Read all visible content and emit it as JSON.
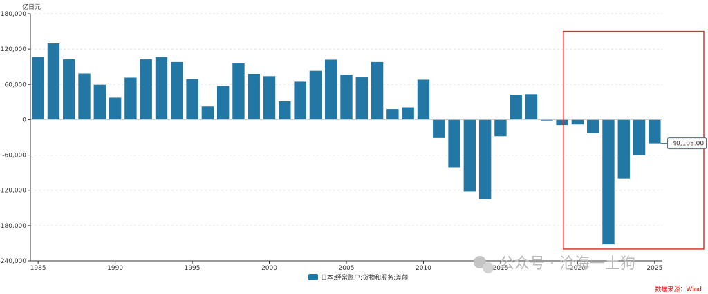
{
  "chart_data": {
    "type": "bar",
    "unit_label": "亿日元",
    "x": [
      1985,
      1986,
      1987,
      1988,
      1989,
      1990,
      1991,
      1992,
      1993,
      1994,
      1995,
      1996,
      1997,
      1998,
      1999,
      2000,
      2001,
      2002,
      2003,
      2004,
      2005,
      2006,
      2007,
      2008,
      2009,
      2010,
      2011,
      2012,
      2013,
      2014,
      2015,
      2016,
      2017,
      2018,
      2019,
      2020,
      2021,
      2022,
      2023,
      2024,
      2025
    ],
    "x_tick_labels": [
      "1985",
      "1990",
      "1995",
      "2000",
      "2005",
      "2010",
      "2015",
      "2020",
      "2025"
    ],
    "x_tick_values": [
      1985,
      1990,
      1995,
      2000,
      2005,
      2010,
      2015,
      2020,
      2025
    ],
    "series": [
      {
        "name": "日本:经常账户:货物和服务:差额",
        "color": "#2277a4",
        "values": [
          106500,
          129500,
          102500,
          78500,
          59500,
          37500,
          71500,
          102500,
          106500,
          98000,
          69000,
          22500,
          57500,
          95500,
          78000,
          74000,
          31000,
          64500,
          83000,
          102000,
          76500,
          72000,
          98000,
          18000,
          21000,
          68000,
          -31000,
          -81000,
          -122000,
          -135000,
          -28000,
          42500,
          43500,
          -1500,
          -9000,
          -8000,
          -22500,
          -212000,
          -100000,
          -60000,
          -40108
        ]
      }
    ],
    "ylim": [
      -240000,
      180000
    ],
    "y_ticks": [
      -240000,
      -180000,
      -120000,
      -60000,
      0,
      60000,
      120000,
      180000
    ],
    "y_tick_labels": [
      "-240,000",
      "-180,000",
      "-120,000",
      "-60,000",
      "0",
      "60,000",
      "120,000",
      "180,000"
    ],
    "grid": true,
    "legend_position": "bottom-center",
    "annotations": [
      {
        "x": 2025,
        "label": "-40,108.00"
      }
    ],
    "highlight_box": {
      "x_start": 2019,
      "x_end": 2025,
      "color": "#e03030"
    }
  },
  "watermark": "公众号 · 沧海一土狗",
  "source": "数据来源：Wind"
}
